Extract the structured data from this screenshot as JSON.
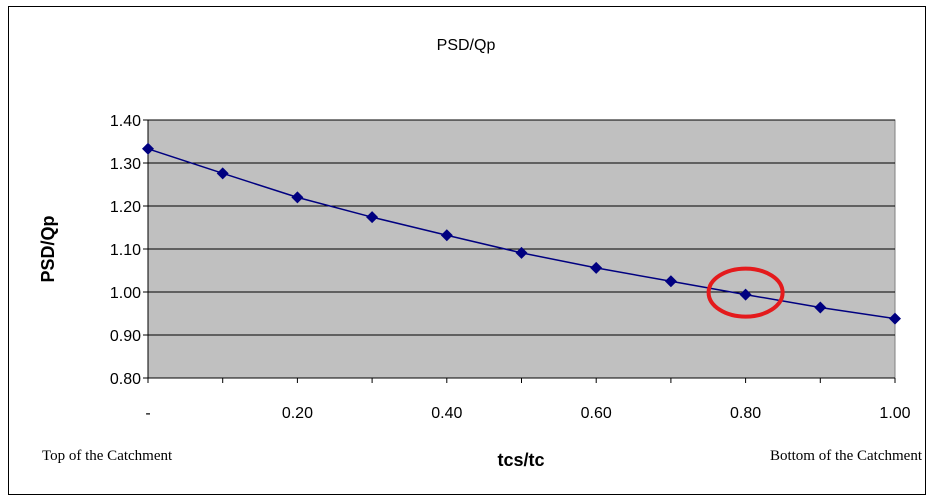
{
  "chart_data": {
    "type": "line",
    "title": "PSD/Qp",
    "xlabel": "tcs/tc",
    "ylabel": "PSD/Qp",
    "x": [
      0,
      0.1,
      0.2,
      0.3,
      0.4,
      0.5,
      0.6,
      0.7,
      0.8,
      0.9,
      1.0
    ],
    "series": [
      {
        "name": "",
        "values": [
          1.333,
          1.276,
          1.22,
          1.174,
          1.132,
          1.091,
          1.056,
          1.025,
          0.994,
          0.964,
          0.938
        ]
      }
    ],
    "xlim": [
      0,
      1.0
    ],
    "ylim": [
      0.8,
      1.4
    ],
    "x_ticks": [
      {
        "value": 0,
        "label": "-"
      },
      {
        "value": 0.2,
        "label": "0.20"
      },
      {
        "value": 0.4,
        "label": "0.40"
      },
      {
        "value": 0.6,
        "label": "0.60"
      },
      {
        "value": 0.8,
        "label": "0.80"
      },
      {
        "value": 1.0,
        "label": "1.00"
      }
    ],
    "y_ticks": [
      {
        "value": 0.8,
        "label": "0.80"
      },
      {
        "value": 0.9,
        "label": "0.90"
      },
      {
        "value": 1.0,
        "label": "1.00"
      },
      {
        "value": 1.1,
        "label": "1.10"
      },
      {
        "value": 1.2,
        "label": "1.20"
      },
      {
        "value": 1.3,
        "label": "1.30"
      },
      {
        "value": 1.4,
        "label": "1.40"
      }
    ],
    "annotations": {
      "left_label": "Top of the Catchment",
      "right_label": "Bottom of the Catchment",
      "highlight": {
        "x": 0.8,
        "y": 0.994
      }
    },
    "grid": true,
    "plot_background": "#c0c0c0",
    "line_color": "#000080",
    "highlight_color": "#e41a1c"
  }
}
